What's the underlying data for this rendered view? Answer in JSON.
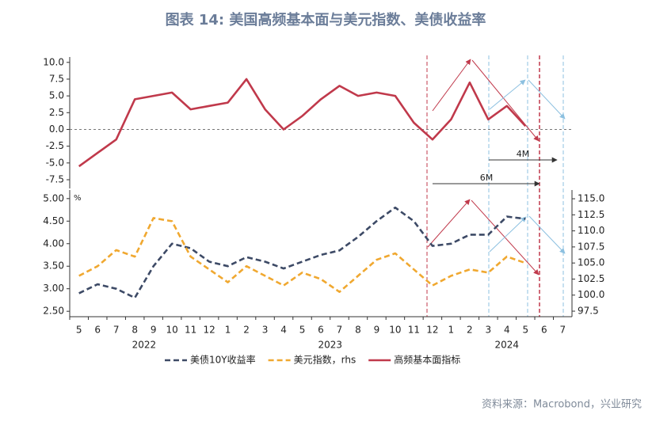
{
  "title": "图表 14: 美国高频基本面与美元指数、美债收益率",
  "source": "资料来源：Macrobond，兴业研究",
  "chart_data": [
    {
      "type": "line",
      "annotations": [
        "4M",
        "6M"
      ],
      "ylim": [
        -8.8,
        10.8
      ],
      "yticks": [
        {
          "value": 10,
          "label": "10.0"
        },
        7.5,
        {
          "value": 5,
          "label": "5.0"
        },
        2.5,
        {
          "value": 0,
          "label": "0.0"
        },
        -2.5,
        {
          "value": -5,
          "label": "-5.0"
        },
        -7.5
      ],
      "zero_line": true,
      "series": [
        {
          "name": "高频基本面指标",
          "color": "#c0394b",
          "values": [
            -5.5,
            -3.5,
            -1.5,
            4.5,
            5,
            5.5,
            3,
            3.5,
            4,
            7.5,
            3,
            0,
            2,
            4.5,
            6.5,
            5,
            5.5,
            5,
            1,
            -1.5,
            1.5,
            7,
            1.5,
            3.5,
            0.5,
            null,
            null
          ]
        }
      ]
    },
    {
      "type": "line",
      "y_unit": "%",
      "categories": [
        "5",
        "6",
        "7",
        "8",
        "9",
        "10",
        "11",
        "12",
        "1",
        "2",
        "3",
        "4",
        "5",
        "6",
        "7",
        "8",
        "9",
        "10",
        "11",
        "12",
        "1",
        "2",
        "3",
        "4",
        "5",
        "6",
        "7"
      ],
      "years": [
        "2022",
        "2023",
        "2024"
      ],
      "ylim": [
        2.38,
        5.19
      ],
      "yticks": [
        {
          "value": 5,
          "label": "5.00"
        },
        {
          "value": 4.5,
          "label": "4.50"
        },
        {
          "value": 4,
          "label": "4.00"
        },
        {
          "value": 3.5,
          "label": "3.50"
        },
        {
          "value": 3,
          "label": "3.00"
        },
        {
          "value": 2.5,
          "label": "2.50"
        }
      ],
      "y2lim": [
        96.64,
        116.36
      ],
      "y2ticks": [
        {
          "value": 115,
          "label": "115.0"
        },
        112.5,
        {
          "value": 110,
          "label": "110.0"
        },
        107.5,
        {
          "value": 105,
          "label": "105.0"
        },
        102.5,
        {
          "value": 100,
          "label": "100.0"
        },
        97.5
      ],
      "series": [
        {
          "name": "美债10Y收益率",
          "color": "#3d4a66",
          "values": [
            2.9,
            3.1,
            3.0,
            2.8,
            3.5,
            4.0,
            3.9,
            3.6,
            3.5,
            3.7,
            3.6,
            3.45,
            3.6,
            3.75,
            3.85,
            4.15,
            4.5,
            4.8,
            4.5,
            3.95,
            4.0,
            4.2,
            4.2,
            4.6,
            4.55,
            null,
            null
          ]
        },
        {
          "name": "美元指数，rhs",
          "color": "#f0a830",
          "axis": "y2",
          "values": [
            103,
            104.5,
            107,
            106,
            112,
            111.5,
            106,
            104,
            102,
            104.5,
            103,
            101.5,
            103.5,
            102.5,
            100.5,
            103,
            105.5,
            106.5,
            104,
            101.5,
            103,
            104,
            103.5,
            106,
            105,
            null,
            null
          ]
        }
      ]
    }
  ]
}
